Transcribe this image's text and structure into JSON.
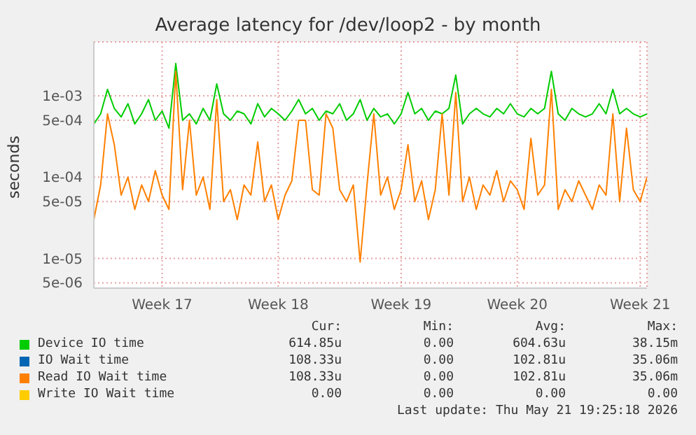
{
  "chart_data": {
    "type": "line",
    "title": "Average latency for /dev/loop2 - by month",
    "ylabel": "seconds",
    "categories": [
      null,
      null,
      null,
      null,
      null,
      null,
      null,
      null,
      null,
      null,
      "Week 17",
      null,
      null,
      null,
      null,
      null,
      null,
      null,
      null,
      null,
      null,
      null,
      null,
      null,
      null,
      null,
      null,
      "Week 18",
      null,
      null,
      null,
      null,
      null,
      null,
      null,
      null,
      null,
      null,
      null,
      null,
      null,
      null,
      null,
      null,
      null,
      "Week 19",
      null,
      null,
      null,
      null,
      null,
      null,
      null,
      null,
      null,
      null,
      null,
      null,
      null,
      null,
      null,
      null,
      "Week 20",
      null,
      null,
      null,
      null,
      null,
      null,
      null,
      null,
      null,
      null,
      null,
      null,
      null,
      null,
      null,
      null,
      null,
      "Week 21",
      null
    ],
    "series": [
      {
        "name": "Device IO time",
        "color": "#00cc00",
        "values": [
          0.00045,
          0.0006,
          0.0012,
          0.0007,
          0.00055,
          0.0008,
          0.00045,
          0.0006,
          0.0009,
          0.0005,
          0.00065,
          0.0004,
          0.0025,
          0.0005,
          0.0006,
          0.00045,
          0.0007,
          0.0005,
          0.0014,
          0.0006,
          0.0005,
          0.00065,
          0.0006,
          0.00045,
          0.0008,
          0.00055,
          0.0007,
          0.0006,
          0.0005,
          0.00065,
          0.0009,
          0.0006,
          0.0007,
          0.0005,
          0.00065,
          0.0006,
          0.0008,
          0.0005,
          0.0006,
          0.0009,
          0.0005,
          0.0007,
          0.00055,
          0.0006,
          0.00045,
          0.0006,
          0.0011,
          0.0006,
          0.0007,
          0.0005,
          0.00065,
          0.0006,
          0.0007,
          0.0018,
          0.00045,
          0.0006,
          0.0007,
          0.0006,
          0.00055,
          0.0007,
          0.0006,
          0.0008,
          0.0006,
          0.00055,
          0.0007,
          0.0006,
          0.0007,
          0.002,
          0.0006,
          0.0005,
          0.0007,
          0.0006,
          0.00055,
          0.0006,
          0.0008,
          0.0006,
          0.0012,
          0.0006,
          0.0007,
          0.0006,
          0.00055,
          0.0006
        ]
      },
      {
        "name": "IO Wait time",
        "color": "#0066b3",
        "values": [
          null,
          null,
          null,
          null,
          null,
          null,
          null,
          null,
          null,
          null,
          null,
          null,
          null,
          null,
          null,
          null,
          null,
          null,
          null,
          null,
          null,
          null,
          null,
          null,
          null,
          null,
          null,
          null,
          null,
          null,
          null,
          null,
          null,
          null,
          null,
          null,
          null,
          null,
          null,
          null,
          null,
          null,
          null,
          null,
          null,
          null,
          null,
          null,
          null,
          null,
          null,
          null,
          null,
          null,
          null,
          null,
          null,
          null,
          null,
          null,
          null,
          null,
          null,
          null,
          null,
          null,
          null,
          null,
          null,
          null,
          null,
          null,
          null,
          null,
          null,
          null,
          null,
          null,
          null,
          null,
          null,
          null
        ]
      },
      {
        "name": "Read IO Wait time",
        "color": "#ff8000",
        "values": [
          3e-05,
          8e-05,
          0.0006,
          0.00025,
          6e-05,
          0.0001,
          4e-05,
          8e-05,
          5e-05,
          0.00012,
          6e-05,
          4e-05,
          0.002,
          7e-05,
          0.0005,
          6e-05,
          0.0001,
          4e-05,
          0.0009,
          5e-05,
          7e-05,
          3e-05,
          8e-05,
          6e-05,
          0.00027,
          5e-05,
          8e-05,
          3e-05,
          6e-05,
          9e-05,
          0.0005,
          0.0005,
          7e-05,
          6e-05,
          0.0006,
          0.0004,
          7e-05,
          5e-05,
          8e-05,
          9e-06,
          8e-05,
          0.0006,
          6e-05,
          0.0001,
          4e-05,
          7e-05,
          0.00025,
          5e-05,
          9e-05,
          3e-05,
          7e-05,
          0.0006,
          6e-05,
          0.0011,
          5e-05,
          0.0001,
          4e-05,
          8e-05,
          6e-05,
          0.00012,
          5e-05,
          9e-05,
          7e-05,
          4e-05,
          0.0003,
          6e-05,
          8e-05,
          0.0012,
          4e-05,
          7e-05,
          5e-05,
          9e-05,
          6e-05,
          4e-05,
          8e-05,
          6e-05,
          0.0006,
          5e-05,
          0.0004,
          7e-05,
          5e-05,
          0.0001
        ]
      },
      {
        "name": "Write IO Wait time",
        "color": "#ffcc00",
        "values": [
          null,
          null,
          null,
          null,
          null,
          null,
          null,
          null,
          null,
          null,
          null,
          null,
          null,
          null,
          null,
          null,
          null,
          null,
          null,
          null,
          null,
          null,
          null,
          null,
          null,
          null,
          null,
          null,
          null,
          null,
          null,
          null,
          null,
          null,
          null,
          null,
          null,
          null,
          null,
          null,
          null,
          null,
          null,
          null,
          null,
          null,
          null,
          null,
          null,
          null,
          null,
          null,
          null,
          null,
          null,
          null,
          null,
          null,
          null,
          null,
          null,
          null,
          null,
          null,
          null,
          null,
          null,
          null,
          null,
          null,
          null,
          null,
          null,
          null,
          null,
          null,
          null,
          null,
          null,
          null,
          null,
          null
        ]
      }
    ],
    "log": "y",
    "ylim": [
      4.3e-06,
      0.0046
    ],
    "yticks": [
      {
        "value": 5e-06,
        "label": "5e-06"
      },
      {
        "value": 1e-05,
        "label": "1e-05"
      },
      {
        "value": 5e-05,
        "label": "5e-05"
      },
      {
        "value": 0.0001,
        "label": "1e-04"
      },
      {
        "value": 0.0005,
        "label": "5e-04"
      },
      {
        "value": 0.001,
        "label": "1e-03"
      }
    ],
    "grid": true,
    "legend": "bottom",
    "annotations": [
      "Cur:",
      "Min:",
      "Avg:",
      "Max:",
      "614.85u",
      "0.00",
      "604.63u",
      "38.15m",
      "108.33u",
      "0.00",
      "102.81u",
      "35.06m",
      "108.33u",
      "0.00",
      "102.81u",
      "35.06m",
      "0.00",
      "0.00",
      "0.00",
      "0.00",
      "Last update: Thu May 21 19:25:18 2026"
    ]
  }
}
